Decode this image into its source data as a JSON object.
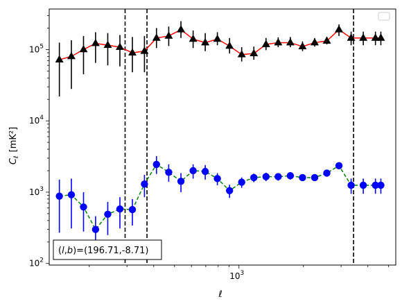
{
  "chart_data": {
    "type": "scatter",
    "xscale": "log",
    "yscale": "log",
    "xlabel": "ℓ",
    "ylabel_main": "C",
    "ylabel_sub": "ℓ",
    "ylabel_unit": "[mK²]",
    "xlim": [
      130,
      5400
    ],
    "ylim": [
      95,
      370000
    ],
    "x_tick_major": [
      1000
    ],
    "x_tick_major_label_base": "10",
    "x_tick_major_label_exp": [
      "3"
    ],
    "y_tick_major": [
      100,
      1000,
      10000,
      100000
    ],
    "y_tick_major_label_base": "10",
    "y_tick_major_label_exp": [
      "2",
      "3",
      "4",
      "5"
    ],
    "x": [
      145,
      165,
      188,
      214,
      244,
      278,
      318,
      362,
      412,
      470,
      536,
      611,
      696,
      793,
      904,
      1030,
      1174,
      1338,
      1525,
      1738,
      1981,
      2258,
      2573,
      2932,
      3341,
      3808,
      4340,
      4600
    ],
    "series": [
      {
        "marker": "triangle",
        "line_color": "#ff0000",
        "marker_color": "#000000",
        "line_style": "solid",
        "values": [
          72000,
          80000,
          100000,
          122000,
          115000,
          108000,
          90000,
          95000,
          145000,
          155000,
          190000,
          140000,
          125000,
          140000,
          112000,
          85000,
          88000,
          118000,
          125000,
          125000,
          110000,
          125000,
          132000,
          190000,
          145000,
          145000,
          145000,
          145000
        ],
        "err_low": [
          22000,
          28000,
          45000,
          65000,
          60000,
          58000,
          48000,
          48000,
          105000,
          112000,
          145000,
          105000,
          95000,
          115000,
          88000,
          68000,
          72000,
          98000,
          108000,
          108000,
          95000,
          110000,
          118000,
          155000,
          115000,
          115000,
          115000,
          115000
        ],
        "err_high": [
          125000,
          135000,
          155000,
          175000,
          170000,
          160000,
          150000,
          155000,
          200000,
          210000,
          250000,
          185000,
          170000,
          175000,
          145000,
          108000,
          110000,
          145000,
          148000,
          150000,
          130000,
          145000,
          150000,
          225000,
          178000,
          178000,
          178000,
          178000
        ]
      },
      {
        "marker": "circle",
        "line_color": "#008000",
        "marker_color": "#0000ff",
        "line_style": "dashed",
        "values": [
          880,
          920,
          620,
          300,
          490,
          580,
          570,
          1300,
          2450,
          1900,
          1420,
          2000,
          1950,
          1550,
          1050,
          1380,
          1600,
          1650,
          1650,
          1700,
          1600,
          1600,
          1850,
          2350,
          1250,
          1250,
          1250,
          1250
        ],
        "err_low": [
          270,
          310,
          280,
          160,
          250,
          310,
          340,
          850,
          1800,
          1400,
          1000,
          1550,
          1500,
          1250,
          830,
          1150,
          1380,
          1430,
          1450,
          1500,
          1430,
          1430,
          1650,
          2100,
          950,
          950,
          950,
          950
        ],
        "err_high": [
          1500,
          1550,
          1000,
          460,
          730,
          850,
          800,
          1750,
          3200,
          2450,
          1850,
          2450,
          2400,
          1850,
          1270,
          1610,
          1820,
          1870,
          1850,
          1900,
          1770,
          1770,
          2050,
          2600,
          1550,
          1550,
          1550,
          1550
        ]
      }
    ],
    "vlines": [
      294,
      372,
      3430
    ],
    "legend_position": "top-right",
    "annotation": "(l,b)=(196.71,-8.71)",
    "annotation_parts": {
      "prefix": "(",
      "l": "l",
      "comma": ",",
      "b": "b",
      "suffix": ")=(196.71,-8.71)"
    },
    "annotation_position": "bottom-left",
    "grid": false
  }
}
